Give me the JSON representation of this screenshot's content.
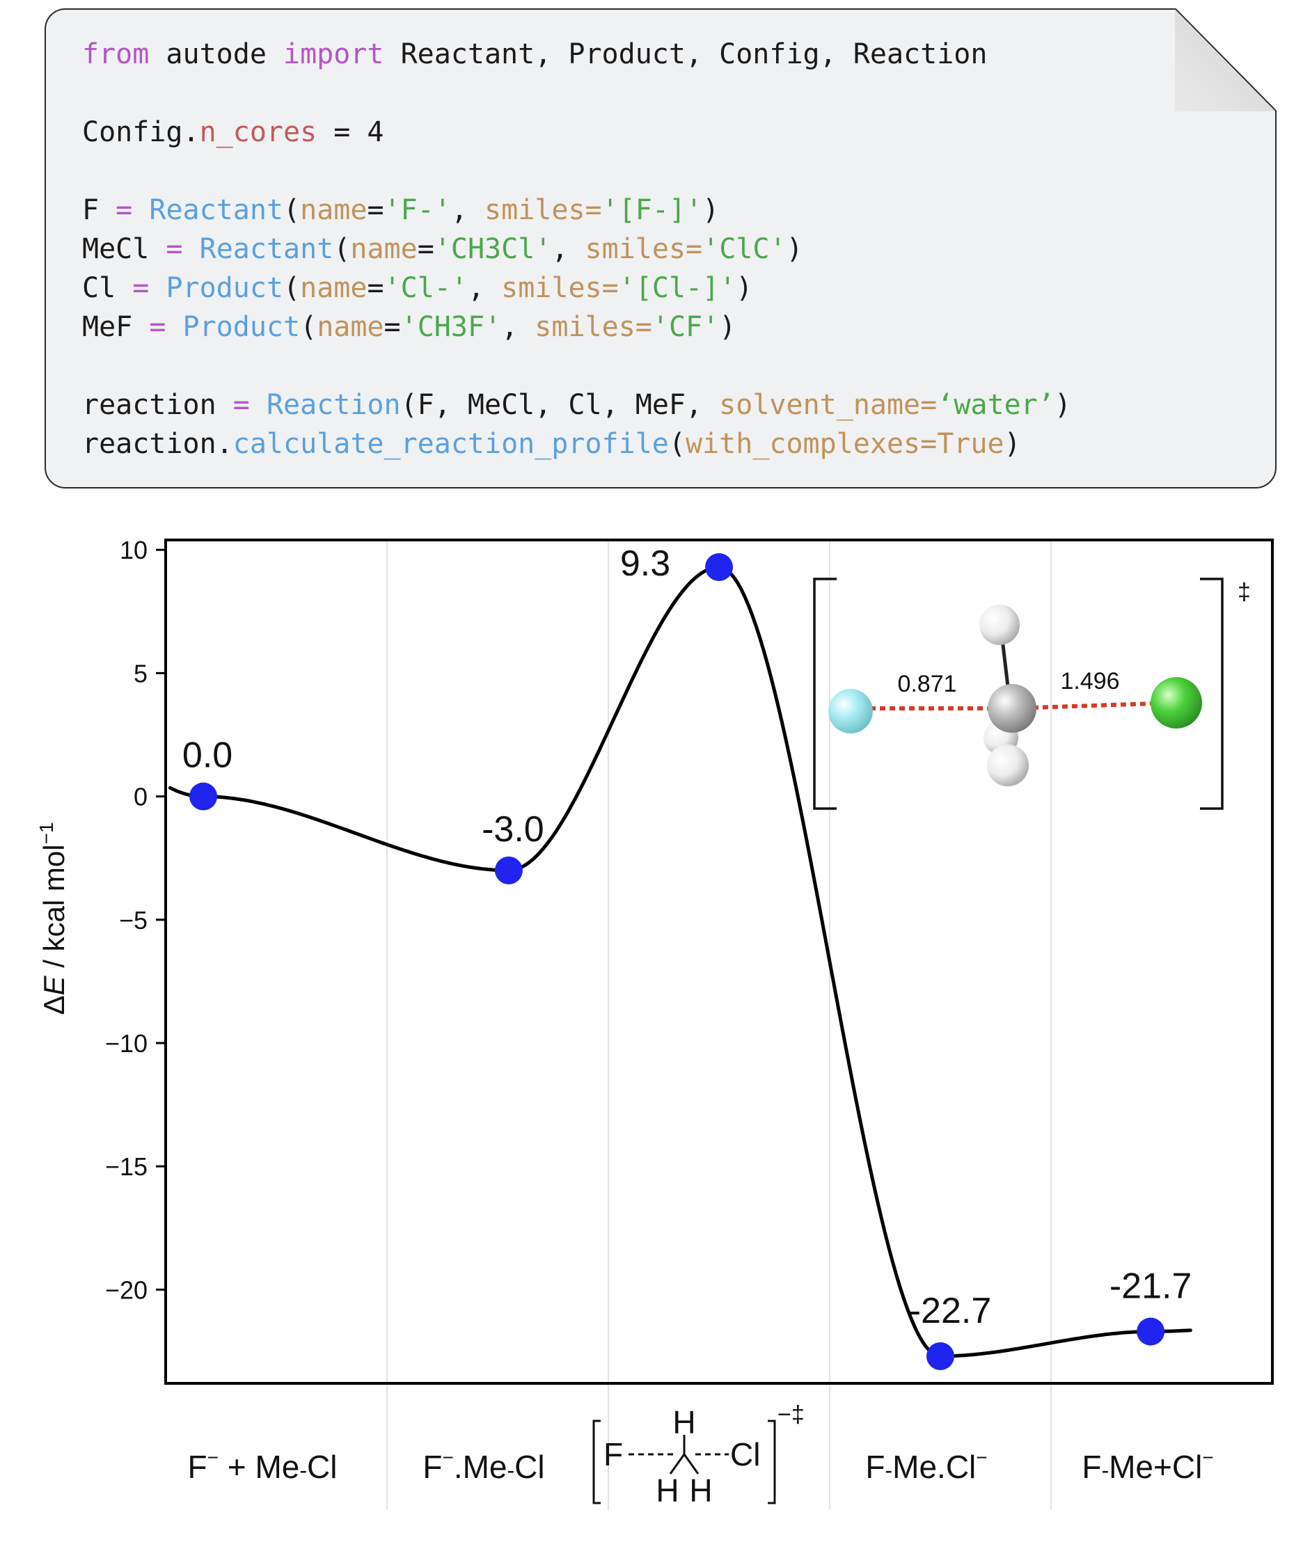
{
  "code": {
    "lines": [
      [
        [
          "kw",
          "from"
        ],
        [
          "plain",
          " autode "
        ],
        [
          "kw",
          "import"
        ],
        [
          "plain",
          " Reactant, Product, Config, Reaction"
        ]
      ],
      [],
      [
        [
          "plain",
          "Config."
        ],
        [
          "attr",
          "n_cores"
        ],
        [
          "plain",
          " = 4"
        ]
      ],
      [],
      [
        [
          "plain",
          "F "
        ],
        [
          "op",
          "="
        ],
        [
          "plain",
          " "
        ],
        [
          "fn",
          "Reactant"
        ],
        [
          "plain",
          "("
        ],
        [
          "arg",
          "name"
        ],
        [
          "plain",
          "="
        ],
        [
          "str",
          "'F-'"
        ],
        [
          "plain",
          ", "
        ],
        [
          "arg",
          "smiles="
        ],
        [
          "str",
          "'[F-]'"
        ],
        [
          "plain",
          ")"
        ]
      ],
      [
        [
          "plain",
          "MeCl "
        ],
        [
          "op",
          "="
        ],
        [
          "plain",
          " "
        ],
        [
          "fn",
          "Reactant"
        ],
        [
          "plain",
          "("
        ],
        [
          "arg",
          "name"
        ],
        [
          "plain",
          "="
        ],
        [
          "str",
          "'CH3Cl'"
        ],
        [
          "plain",
          ", "
        ],
        [
          "arg",
          "smiles="
        ],
        [
          "str",
          "'ClC'"
        ],
        [
          "plain",
          ")"
        ]
      ],
      [
        [
          "plain",
          "Cl "
        ],
        [
          "op",
          "="
        ],
        [
          "plain",
          " "
        ],
        [
          "fn",
          "Product"
        ],
        [
          "plain",
          "("
        ],
        [
          "arg",
          "name"
        ],
        [
          "plain",
          "="
        ],
        [
          "str",
          "'Cl-'"
        ],
        [
          "plain",
          ", "
        ],
        [
          "arg",
          "smiles="
        ],
        [
          "str",
          "'[Cl-]'"
        ],
        [
          "plain",
          ")"
        ]
      ],
      [
        [
          "plain",
          "MeF "
        ],
        [
          "op",
          "="
        ],
        [
          "plain",
          " "
        ],
        [
          "fn",
          "Product"
        ],
        [
          "plain",
          "("
        ],
        [
          "arg",
          "name"
        ],
        [
          "plain",
          "="
        ],
        [
          "str",
          "'CH3F'"
        ],
        [
          "plain",
          ", "
        ],
        [
          "arg",
          "smiles="
        ],
        [
          "str",
          "'CF'"
        ],
        [
          "plain",
          ")"
        ]
      ],
      [],
      [
        [
          "plain",
          "reaction "
        ],
        [
          "op",
          "="
        ],
        [
          "plain",
          " "
        ],
        [
          "fn",
          "Reaction"
        ],
        [
          "plain",
          "(F, MeCl, Cl, MeF, "
        ],
        [
          "arg",
          "solvent_name="
        ],
        [
          "str",
          "‘water’"
        ],
        [
          "plain",
          ")"
        ]
      ],
      [
        [
          "plain",
          "reaction."
        ],
        [
          "fn",
          "calculate_reaction_profile"
        ],
        [
          "plain",
          "("
        ],
        [
          "arg",
          "with_complexes=True"
        ],
        [
          "plain",
          ")"
        ]
      ]
    ]
  },
  "chart_data": {
    "type": "line",
    "ylabel_prefix": "Δ",
    "ylabel_var": "E",
    "ylabel_unit": " / kcal mol",
    "ylabel_exp": "−1",
    "ylim": [
      -23.8,
      10.4
    ],
    "yticks": [
      10,
      5,
      0,
      -5,
      -10,
      -15,
      -20
    ],
    "ytick_labels": [
      "10",
      "5",
      "0",
      "−5",
      "−10",
      "−15",
      "−20"
    ],
    "points": [
      {
        "x": 0.17,
        "y": 0.0,
        "label": "0.0"
      },
      {
        "x": 1.55,
        "y": -3.0,
        "label": "-3.0"
      },
      {
        "x": 2.5,
        "y": 9.3,
        "label": "9.3"
      },
      {
        "x": 3.5,
        "y": -22.7,
        "label": "-22.7"
      },
      {
        "x": 4.45,
        "y": -21.7,
        "label": "-21.7"
      }
    ],
    "categories": [
      {
        "parts": [
          "F",
          "−",
          " + Me",
          "-",
          "Cl"
        ]
      },
      {
        "parts": [
          "F",
          "−",
          ".Me",
          "-",
          "Cl"
        ]
      },
      {
        "ts": true,
        "F": "F",
        "Cl": "Cl",
        "H": "H",
        "charge": "−‡"
      },
      {
        "parts": [
          "F",
          "-",
          "Me.Cl",
          "−"
        ]
      },
      {
        "parts": [
          "F",
          "-",
          "Me+Cl",
          "−"
        ]
      }
    ],
    "inset": {
      "bond_left": "0.871",
      "bond_right": "1.496",
      "ts_mark": "‡",
      "colors": {
        "F": "#a6ecf2",
        "C": "#b5b5b5",
        "H": "#eeeeee",
        "Cl": "#4ed23c",
        "bond": "#d93a24"
      }
    },
    "grid": "vertical",
    "line_color": "#000000",
    "marker_color": "#1f24ee"
  }
}
